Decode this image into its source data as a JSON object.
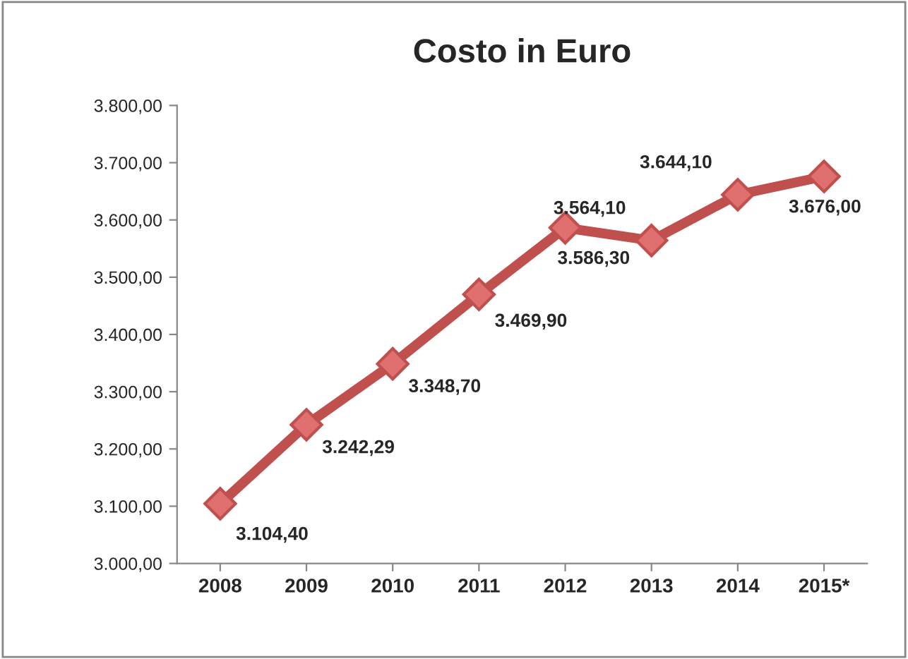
{
  "chart_data": {
    "type": "line",
    "title": "Costo in Euro",
    "categories": [
      "2008",
      "2009",
      "2010",
      "2011",
      "2012",
      "2013",
      "2014",
      "2015*"
    ],
    "series": [
      {
        "color": "#c0504d",
        "values": [
          3104.4,
          3242.29,
          3348.7,
          3469.9,
          3586.3,
          3564.1,
          3644.1,
          3676.0
        ],
        "value_labels": [
          "3.104,40",
          "3.242,29",
          "3.348,70",
          "3.469,90",
          "3.586,30",
          "3.564,10",
          "3.644,10",
          "3.676,00"
        ]
      }
    ],
    "ylim": [
      3000,
      3800
    ],
    "yticks": [
      {
        "value": 3000,
        "label": "3.000,00"
      },
      {
        "value": 3100,
        "label": "3.100,00"
      },
      {
        "value": 3200,
        "label": "3.200,00"
      },
      {
        "value": 3300,
        "label": "3.300,00"
      },
      {
        "value": 3400,
        "label": "3.400,00"
      },
      {
        "value": 3500,
        "label": "3.500,00"
      },
      {
        "value": 3600,
        "label": "3.600,00"
      },
      {
        "value": 3700,
        "label": "3.700,00"
      },
      {
        "value": 3800,
        "label": "3.800,00"
      }
    ],
    "marker": "diamond",
    "line_style": "solid",
    "grid": false,
    "legend": false
  }
}
